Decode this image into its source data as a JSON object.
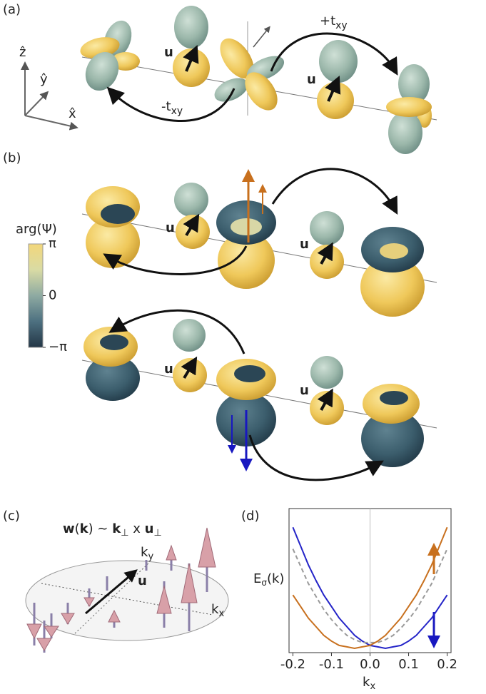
{
  "panel_a": {
    "label": "(a)",
    "axes": [
      "ẑ",
      "ŷ",
      "x̂"
    ],
    "hop_plus": {
      "text": "+t",
      "sub": "xy"
    },
    "hop_minus": {
      "text": "-t",
      "sub": "xy"
    },
    "u_labels": [
      "u",
      "u"
    ]
  },
  "panel_b": {
    "label": "(b)",
    "colorbar": {
      "title": "arg(Ψ)",
      "lim": [
        -3.14159,
        3.14159
      ],
      "ticks": [
        {
          "value": 3.14159,
          "label": "π"
        },
        0,
        {
          "value": -3.14159,
          "label": "−π"
        }
      ]
    },
    "u_labels": [
      "u",
      "u",
      "u",
      "u"
    ]
  },
  "panel_c": {
    "label": "(c)",
    "formula": [
      "w",
      "(",
      "k",
      ") ~ ",
      "k",
      "⊥",
      " x ",
      "u",
      "⊥"
    ],
    "k_y": {
      "text": "k",
      "sub": "y"
    },
    "k_x": {
      "text": "k",
      "sub": "x"
    },
    "u": "u"
  },
  "chart_data": {
    "type": "line",
    "label": "(d)",
    "y_label": {
      "text": "E",
      "sub": "σ",
      "rest": "(k)"
    },
    "x_label": {
      "text": "k",
      "sub": "x"
    },
    "x": [
      -0.2,
      -0.18,
      -0.16,
      -0.14,
      -0.12,
      -0.1,
      -0.08,
      -0.06,
      -0.04,
      -0.02,
      0,
      0.02,
      0.04,
      0.06,
      0.08,
      0.1,
      0.12,
      0.14,
      0.16,
      0.18,
      0.2
    ],
    "series": [
      {
        "color": "#2424c8",
        "line_style": "solid",
        "values": [
          0.87,
          0.74,
          0.61,
          0.5,
          0.4,
          0.32,
          0.24,
          0.18,
          0.12,
          0.08,
          0.05,
          0.04,
          0.03,
          0.04,
          0.05,
          0.08,
          0.12,
          0.18,
          0.24,
          0.32,
          0.4
        ]
      },
      {
        "color": "#9a9a9a",
        "line_style": "dashed",
        "values": [
          0.72,
          0.6,
          0.48,
          0.39,
          0.3,
          0.23,
          0.17,
          0.12,
          0.09,
          0.07,
          0.07,
          0.07,
          0.09,
          0.12,
          0.17,
          0.23,
          0.3,
          0.39,
          0.48,
          0.6,
          0.72
        ]
      },
      {
        "color": "#c8701e",
        "line_style": "solid",
        "values": [
          0.4,
          0.32,
          0.24,
          0.18,
          0.12,
          0.08,
          0.05,
          0.04,
          0.03,
          0.04,
          0.05,
          0.08,
          0.12,
          0.18,
          0.24,
          0.32,
          0.4,
          0.5,
          0.61,
          0.74,
          0.87
        ]
      }
    ],
    "xlim": [
      -0.21,
      0.21
    ],
    "ylim": [
      0,
      1
    ],
    "xticks": [
      -0.2,
      -0.1,
      {
        "value": 0,
        "label": "0.0"
      },
      0.1,
      0.2
    ]
  }
}
